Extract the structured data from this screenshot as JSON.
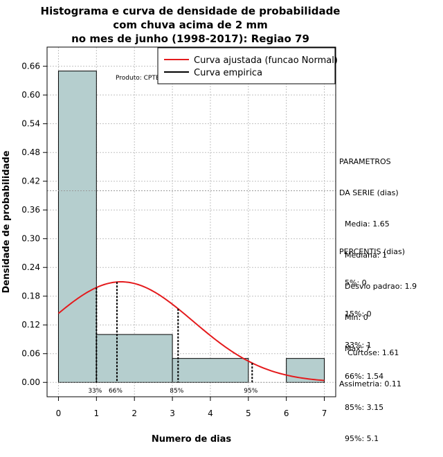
{
  "chart_data": {
    "type": "bar",
    "title_lines": [
      "Histograma e curva de densidade de probabilidade",
      "com chuva acima de 2 mm",
      "no mes de junho (1998-2017): Regiao 79"
    ],
    "xlabel": "Numero de dias",
    "ylabel": "Densidade de probabilidade",
    "xlim": [
      -0.3,
      7.3
    ],
    "ylim": [
      -0.03,
      0.7
    ],
    "x_ticks": [
      "0",
      "1",
      "2",
      "3",
      "4",
      "5",
      "6",
      "7"
    ],
    "y_ticks": [
      "0.00",
      "0.06",
      "0.12",
      "0.18",
      "0.24",
      "0.30",
      "0.36",
      "0.42",
      "0.48",
      "0.54",
      "0.60",
      "0.66"
    ],
    "bins": [
      {
        "start": 0,
        "end": 1,
        "density": 0.65
      },
      {
        "start": 1,
        "end": 3,
        "density": 0.1
      },
      {
        "start": 3,
        "end": 5,
        "density": 0.05
      },
      {
        "start": 5,
        "end": 6,
        "density": 0.0
      },
      {
        "start": 6,
        "end": 7,
        "density": 0.05
      }
    ],
    "fitted_curve": {
      "name": "Curva ajustada (funcao Normal)",
      "mean": 1.65,
      "sd": 1.9,
      "color": "#e41a1c"
    },
    "empirical_curve": {
      "name": "Curva empirica",
      "color": "#000000"
    },
    "reference_line_y": 0.4,
    "percentile_markers": [
      {
        "label": "33%",
        "x": 1.0
      },
      {
        "label": "66%",
        "x": 1.54
      },
      {
        "label": "85%",
        "x": 3.15
      },
      {
        "label": "95%",
        "x": 5.1
      }
    ],
    "produto": "Produto: CPTEC/INPE",
    "bar_color": "#b5cece"
  },
  "sidebar": {
    "parametros_title": [
      "PARAMETROS",
      "DA SERIE (dias)"
    ],
    "parametros": [
      "Media: 1.65",
      "Mediana: 1",
      "Desvio padrao: 1.9",
      "Min: 0",
      "Max: 7"
    ],
    "percentis_title": "PERCENTIS (dias)",
    "percentis": [
      "5%: 0",
      "15%: 0",
      "33%: 1",
      "66%: 1.54",
      "85%: 3.15",
      "95%: 5.1"
    ],
    "curtose": "Curtose: 1.61",
    "assimetria": "Assimetria: 0.11"
  }
}
